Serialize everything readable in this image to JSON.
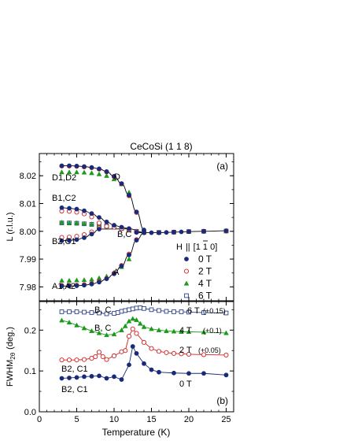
{
  "chart_data": [
    {
      "type": "line",
      "panel": "(a)",
      "title": "CeCoSi   (1 1 8)",
      "xlabel": "",
      "ylabel": "L  (r.l.u.)",
      "xlim": [
        0,
        26
      ],
      "ylim": [
        7.975,
        8.028
      ],
      "x_ticks": [
        "0",
        "5",
        "10",
        "15",
        "20",
        "25"
      ],
      "y_ticks": [
        "7.98",
        "7.99",
        "8.00",
        "8.01",
        "8.02"
      ],
      "grid": false,
      "legend": {
        "title": "H || [1 1 0]",
        "title_parts": [
          "H",
          "||",
          "[",
          "1",
          " ",
          "1",
          " 0]"
        ],
        "placement": "right",
        "entries": [
          "0 T",
          "2 T",
          "4 T",
          "6 T"
        ]
      },
      "annotations": [
        "D",
        "D1,D2",
        "B1,C2",
        "B2,C1",
        "B,C",
        "A",
        "A1,A2"
      ],
      "colors": {
        "0 T": "#1a2a7a",
        "2 T": "#d42020",
        "4 T": "#1a9a1a",
        "6 T": "#2a3f88",
        "line": "#000000"
      },
      "series": [
        {
          "name": "0 T",
          "marker": "filled-circle",
          "branches": [
            {
              "label": "D",
              "x": [
                3,
                4,
                5,
                6,
                7,
                8,
                9,
                10,
                11,
                12,
                13,
                14
              ],
              "y": [
                8.0236,
                8.0236,
                8.0235,
                8.0233,
                8.023,
                8.0225,
                8.0215,
                8.0198,
                8.0172,
                8.013,
                8.007,
                8.0005
              ]
            },
            {
              "label": "B1",
              "x": [
                3,
                4,
                5,
                6,
                7,
                8,
                9,
                10,
                11,
                12
              ],
              "y": [
                8.0085,
                8.0083,
                8.008,
                8.0074,
                8.0064,
                8.005,
                8.0034,
                8.0022,
                8.0015,
                8.001
              ]
            },
            {
              "label": "C1",
              "x": [
                3,
                4,
                5,
                6,
                7,
                8
              ],
              "y": [
                7.9966,
                7.9967,
                7.997,
                7.9977,
                7.999,
                8.0008
              ]
            },
            {
              "label": "B,C",
              "x": [
                13,
                14,
                15,
                16,
                17,
                18,
                19,
                20,
                22,
                25
              ],
              "y": [
                7.9996,
                7.9995,
                7.9995,
                7.9995,
                7.9996,
                7.9997,
                7.9998,
                7.9999,
                8.0,
                8.0002
              ]
            },
            {
              "label": "A",
              "x": [
                3,
                4,
                5,
                6,
                7,
                8,
                9,
                10,
                11,
                12,
                13
              ],
              "y": [
                7.9803,
                7.9803,
                7.9804,
                7.9806,
                7.981,
                7.9817,
                7.9829,
                7.9847,
                7.9875,
                7.9915,
                7.9968
              ]
            }
          ]
        },
        {
          "name": "2 T",
          "marker": "open-circle",
          "branches": [
            {
              "label": "D",
              "x": [
                3,
                4,
                5,
                6,
                7,
                8,
                9,
                10,
                11,
                12,
                13
              ],
              "y": [
                8.0235,
                8.0235,
                8.0234,
                8.0232,
                8.0229,
                8.0224,
                8.0214,
                8.0197,
                8.0171,
                8.0128,
                8.0068
              ]
            },
            {
              "label": "B1",
              "x": [
                3,
                4,
                5,
                6,
                7,
                8
              ],
              "y": [
                8.0073,
                8.0072,
                8.0069,
                8.0063,
                8.0052,
                8.003
              ]
            },
            {
              "label": "C1",
              "x": [
                3,
                4,
                5,
                6,
                7,
                8
              ],
              "y": [
                7.9978,
                7.9979,
                7.9982,
                7.9988,
                7.9998,
                8.0012
              ]
            },
            {
              "label": "B,C",
              "x": [
                9,
                10,
                11,
                12,
                13,
                14,
                16,
                18,
                20,
                22,
                25
              ],
              "y": [
                8.0018,
                8.0015,
                8.001,
                8.0005,
                7.9998,
                7.9995,
                7.9995,
                7.9997,
                7.9999,
                8.0,
                8.0001
              ]
            },
            {
              "label": "A",
              "x": [
                3,
                4,
                5,
                6,
                7,
                8,
                9,
                10,
                11,
                12,
                13
              ],
              "y": [
                7.9805,
                7.9805,
                7.9806,
                7.9808,
                7.9812,
                7.9819,
                7.983,
                7.9849,
                7.9877,
                7.9918,
                7.997
              ]
            }
          ]
        },
        {
          "name": "4 T",
          "marker": "filled-triangle",
          "branches": [
            {
              "label": "D",
              "x": [
                3,
                4,
                5,
                6,
                7,
                8,
                9,
                10,
                11,
                12
              ],
              "y": [
                8.0213,
                8.0213,
                8.0213,
                8.0212,
                8.021,
                8.0206,
                8.02,
                8.0188,
                8.017,
                8.014
              ]
            },
            {
              "label": "B,C",
              "x": [
                3,
                4,
                5,
                6,
                7,
                8,
                9,
                10,
                11,
                12,
                13,
                14,
                16,
                18,
                20,
                22,
                25
              ],
              "y": [
                8.0032,
                8.0031,
                8.003,
                8.0028,
                8.0026,
                8.0023,
                8.002,
                8.0016,
                8.0011,
                8.0006,
                8.0,
                7.9996,
                7.9996,
                7.9997,
                7.9999,
                8.0,
                8.0001
              ]
            },
            {
              "label": "A",
              "x": [
                3,
                4,
                5,
                6,
                7,
                8,
                9,
                10,
                11,
                12
              ],
              "y": [
                7.9823,
                7.9823,
                7.9824,
                7.9825,
                7.9827,
                7.9832,
                7.9838,
                7.9852,
                7.9872,
                7.99
              ]
            }
          ]
        },
        {
          "name": "6 T",
          "marker": "open-square",
          "branches": [
            {
              "label": "B,C",
              "x": [
                3,
                4,
                5,
                6,
                7,
                8,
                9,
                10,
                11,
                12,
                13,
                14,
                16,
                18,
                20,
                22,
                25
              ],
              "y": [
                8.003,
                8.003,
                8.0029,
                8.0027,
                8.0025,
                8.0022,
                8.0019,
                8.0015,
                8.001,
                8.0005,
                8.0,
                7.9996,
                7.9996,
                7.9997,
                7.9999,
                8.0,
                8.0001
              ]
            }
          ]
        }
      ]
    },
    {
      "type": "line",
      "panel": "(b)",
      "xlabel": "Temperature  (K)",
      "ylabel": "FWHM2θ  (deg.)",
      "ylabel_parts": [
        "FWHM",
        "2θ",
        "(deg.)"
      ],
      "xlim": [
        0,
        26
      ],
      "ylim": [
        0,
        0.27
      ],
      "x_ticks": [
        "0",
        "5",
        "10",
        "15",
        "20",
        "25"
      ],
      "y_ticks": [
        "0.0",
        "0.1",
        "0.2"
      ],
      "grid": false,
      "annotations": [
        "B, C",
        "B, C",
        "B2, C1",
        "B2, C1",
        "6 T",
        "(+0.15)",
        "4 T",
        "(+0.1)",
        "2 T",
        "(+0.05)",
        "0 T"
      ],
      "series": [
        {
          "name": "0 T",
          "marker": "filled-circle",
          "x": [
            3,
            4,
            5,
            6,
            7,
            8,
            9,
            10,
            11,
            12,
            12.5,
            13,
            14,
            15,
            16,
            18,
            20,
            22,
            25
          ],
          "y": [
            0.082,
            0.083,
            0.084,
            0.086,
            0.087,
            0.088,
            0.082,
            0.086,
            0.079,
            0.115,
            0.16,
            0.143,
            0.118,
            0.103,
            0.097,
            0.095,
            0.094,
            0.094,
            0.09
          ]
        },
        {
          "name": "2 T",
          "marker": "open-circle",
          "x": [
            3,
            4,
            5,
            6,
            7,
            7.5,
            8,
            8.5,
            9,
            10,
            11,
            11.5,
            12,
            12.5,
            13,
            14,
            15,
            16,
            17,
            18,
            19,
            20,
            22,
            25
          ],
          "y": [
            0.127,
            0.127,
            0.127,
            0.128,
            0.131,
            0.135,
            0.146,
            0.135,
            0.128,
            0.137,
            0.147,
            0.15,
            0.185,
            0.203,
            0.192,
            0.17,
            0.155,
            0.148,
            0.145,
            0.143,
            0.142,
            0.141,
            0.14,
            0.139
          ]
        },
        {
          "name": "4 T",
          "marker": "filled-triangle",
          "x": [
            3,
            4,
            5,
            6,
            7,
            8,
            9,
            10,
            11,
            11.5,
            12,
            12.5,
            13,
            13.5,
            14,
            15,
            16,
            17,
            18,
            19,
            20,
            22,
            25
          ],
          "y": [
            0.224,
            0.219,
            0.212,
            0.205,
            0.198,
            0.193,
            0.188,
            0.19,
            0.2,
            0.21,
            0.222,
            0.228,
            0.225,
            0.216,
            0.208,
            0.203,
            0.2,
            0.198,
            0.197,
            0.196,
            0.196,
            0.195,
            0.193
          ]
        },
        {
          "name": "6 T",
          "marker": "open-square",
          "x": [
            3,
            4,
            5,
            6,
            7,
            8,
            9,
            10,
            10.5,
            11,
            11.5,
            12,
            12.5,
            13,
            13.5,
            14,
            15,
            16,
            17,
            18,
            19,
            20,
            22,
            25
          ],
          "y": [
            0.245,
            0.245,
            0.245,
            0.244,
            0.243,
            0.242,
            0.24,
            0.241,
            0.243,
            0.246,
            0.248,
            0.25,
            0.252,
            0.254,
            0.255,
            0.253,
            0.25,
            0.248,
            0.246,
            0.245,
            0.245,
            0.244,
            0.243,
            0.242
          ]
        }
      ]
    }
  ]
}
